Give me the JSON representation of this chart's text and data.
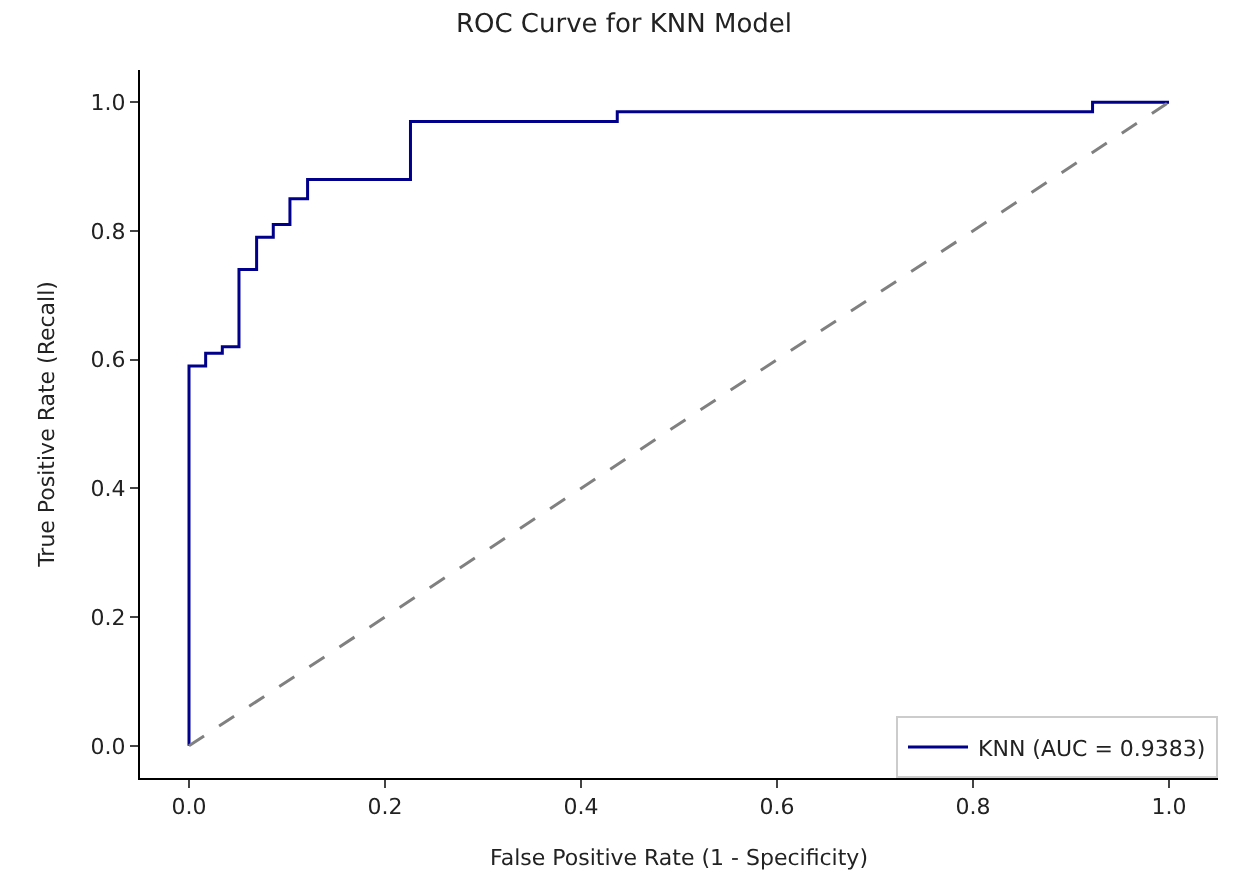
{
  "chart_data": {
    "type": "step",
    "title": "ROC Curve for KNN Model",
    "xlabel": "False Positive Rate (1 - Specificity)",
    "ylabel": "True Positive Rate (Recall)",
    "series": [
      {
        "name": "KNN (AUC = 0.9383)",
        "color": "#00008b",
        "line_style": "solid",
        "x": [
          0,
          0,
          0.017,
          0.034,
          0.051,
          0.069,
          0.086,
          0.103,
          0.121,
          0.226,
          0.437,
          0.922,
          1.0
        ],
        "values": [
          0,
          0.59,
          0.61,
          0.62,
          0.74,
          0.79,
          0.81,
          0.85,
          0.88,
          0.97,
          0.985,
          1.0,
          1.0
        ]
      },
      {
        "color": "#808080",
        "type": "line",
        "line_style": "dashed",
        "x": [
          0,
          1
        ],
        "values": [
          0,
          1
        ]
      }
    ],
    "xlim": [
      -0.05,
      1.05
    ],
    "ylim": [
      -0.05,
      1.05
    ],
    "xticks": [
      {
        "value": 0,
        "label": "0.0"
      },
      0.2,
      0.4,
      0.6,
      0.8,
      {
        "value": 1,
        "label": "1.0"
      }
    ],
    "yticks": [
      {
        "value": 0,
        "label": "0.0"
      },
      0.2,
      0.4,
      0.6,
      0.8,
      {
        "value": 1,
        "label": "1.0"
      }
    ],
    "legend": "bottom right"
  }
}
